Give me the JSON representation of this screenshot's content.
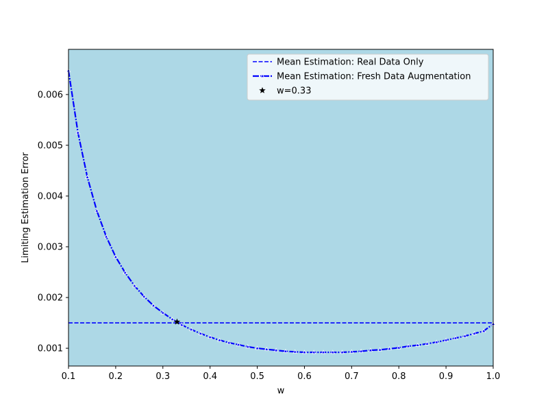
{
  "chart_data": {
    "type": "line",
    "title": "",
    "xlabel": "w",
    "ylabel": "Limiting Estimation Error",
    "xlim": [
      0.1,
      1.0
    ],
    "ylim": [
      0.00065,
      0.00689
    ],
    "grid": false,
    "legend_position": "top-right",
    "background_color": "#add8e6",
    "x_ticks": [
      0.1,
      0.2,
      0.3,
      0.4,
      0.5,
      0.6,
      0.7,
      0.8,
      0.9,
      1.0
    ],
    "x_tick_labels": [
      "0.1",
      "0.2",
      "0.3",
      "0.4",
      "0.5",
      "0.6",
      "0.7",
      "0.8",
      "0.9",
      "1.0"
    ],
    "y_ticks": [
      0.001,
      0.002,
      0.003,
      0.004,
      0.005,
      0.006
    ],
    "y_tick_labels": [
      "0.001",
      "0.002",
      "0.003",
      "0.004",
      "0.005",
      "0.006"
    ],
    "series": [
      {
        "name": "Mean Estimation: Real Data Only",
        "style": "dashed",
        "color": "#0000ff",
        "x": [
          0.1,
          1.0
        ],
        "y": [
          0.0015,
          0.0015
        ]
      },
      {
        "name": "Mean Estimation: Fresh Data Augmentation",
        "style": "dashdot",
        "color": "#0000ff",
        "marker": "triangle",
        "x": [
          0.1,
          0.12,
          0.14,
          0.16,
          0.18,
          0.2,
          0.22,
          0.24,
          0.26,
          0.28,
          0.3,
          0.32,
          0.34,
          0.36,
          0.38,
          0.4,
          0.42,
          0.44,
          0.46,
          0.48,
          0.5,
          0.52,
          0.54,
          0.56,
          0.58,
          0.6,
          0.62,
          0.64,
          0.66,
          0.68,
          0.7,
          0.72,
          0.74,
          0.76,
          0.78,
          0.8,
          0.82,
          0.84,
          0.86,
          0.88,
          0.9,
          0.92,
          0.94,
          0.96,
          0.98,
          1.0
        ],
        "y": [
          0.00647,
          0.00525,
          0.00437,
          0.00371,
          0.0032,
          0.0028,
          0.00249,
          0.00223,
          0.00202,
          0.00184,
          0.0017,
          0.00157,
          0.00146,
          0.00137,
          0.00129,
          0.00122,
          0.00116,
          0.00111,
          0.00107,
          0.00103,
          0.001,
          0.00098,
          0.00096,
          0.00094,
          0.00093,
          0.00092,
          0.00092,
          0.00092,
          0.00092,
          0.00092,
          0.00093,
          0.00094,
          0.00096,
          0.00097,
          0.00099,
          0.00101,
          0.00104,
          0.00106,
          0.00109,
          0.00112,
          0.00116,
          0.0012,
          0.00124,
          0.00129,
          0.00134,
          0.00148
        ]
      },
      {
        "name": "w=0.33",
        "style": "scatter",
        "color": "#000000",
        "marker": "star",
        "x": [
          0.33
        ],
        "y": [
          0.00152
        ]
      }
    ]
  }
}
